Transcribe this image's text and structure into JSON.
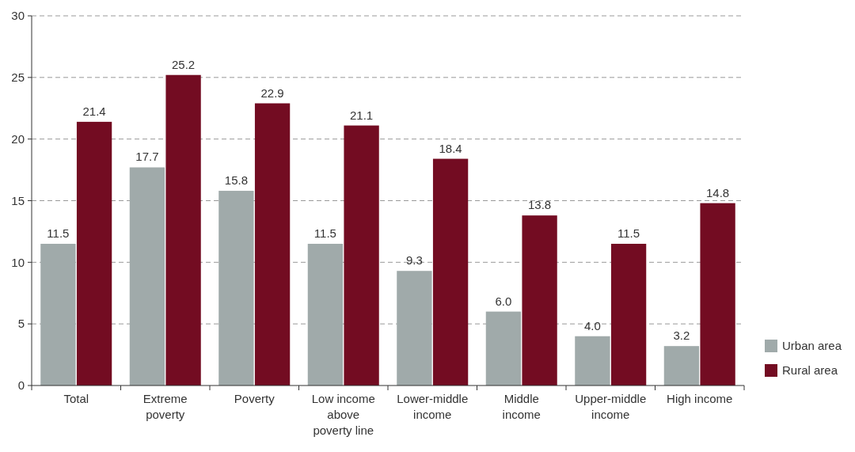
{
  "chart_data": {
    "type": "bar",
    "categories": [
      "Total",
      "Extreme poverty",
      "Poverty",
      "Low income above poverty line",
      "Lower-middle income",
      "Middle income",
      "Upper-middle income",
      "High income"
    ],
    "series": [
      {
        "name": "Urban area",
        "color": "#a0aaaa",
        "values": [
          11.5,
          17.7,
          15.8,
          11.5,
          9.3,
          6,
          4,
          3.2
        ],
        "value_labels": [
          "11.5",
          "17.7",
          "15.8",
          "11.5",
          "9.3",
          "6.0",
          "4.0",
          "3.2"
        ]
      },
      {
        "name": "Rural area",
        "color": "#730c22",
        "values": [
          21.4,
          25.2,
          22.9,
          21.1,
          18.4,
          13.8,
          11.5,
          14.8
        ],
        "value_labels": [
          "21.4",
          "25.2",
          "22.9",
          "21.1",
          "18.4",
          "13.8",
          "11.5",
          "14.8"
        ]
      }
    ],
    "ylim": [
      0,
      30
    ],
    "yticks": [
      0,
      5,
      10,
      15,
      20,
      25,
      30
    ],
    "grid": "y",
    "legend": "bottom right"
  }
}
